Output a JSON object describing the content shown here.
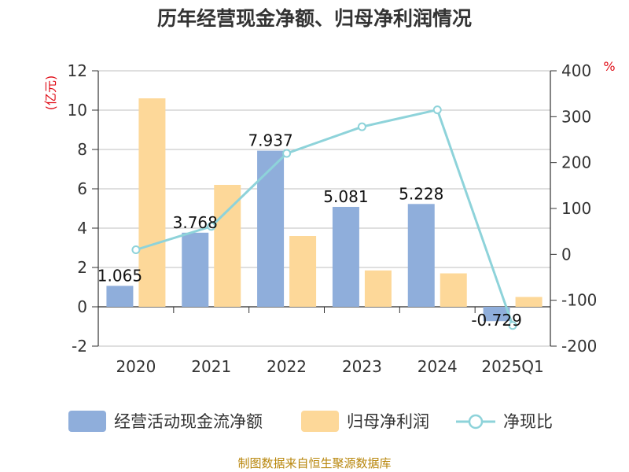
{
  "title": "历年经营现金净额、归母净利润情况",
  "source": "制图数据来自恒生聚源数据库",
  "left_axis_unit": "(亿元)",
  "right_axis_unit": "%",
  "legend": {
    "cash_flow": "经营活动现金流净额",
    "net_profit": "归母净利润",
    "ratio": "净现比"
  },
  "colors": {
    "cash_flow": "#8faedb",
    "net_profit": "#fdd899",
    "ratio": "#8ed3da",
    "grid": "#cccccc",
    "axis": "#333333"
  },
  "chart_data": {
    "type": "bar",
    "title": "历年经营现金净额、归母净利润情况",
    "categories": [
      "2020",
      "2021",
      "2022",
      "2023",
      "2024",
      "2025Q1"
    ],
    "series": [
      {
        "name": "经营活动现金流净额",
        "axis": "left",
        "values": [
          1.065,
          3.768,
          7.937,
          5.081,
          5.228,
          -0.729
        ],
        "labels": [
          "1.065",
          "3.768",
          "7.937",
          "5.081",
          "5.228",
          "-0.729"
        ]
      },
      {
        "name": "归母净利润",
        "axis": "left",
        "values": [
          10.6,
          6.2,
          3.6,
          1.85,
          1.7,
          0.5
        ]
      },
      {
        "name": "净现比",
        "type": "line",
        "axis": "right",
        "values": [
          10,
          61,
          220,
          278,
          315,
          -155
        ]
      }
    ],
    "y_left": {
      "min": -2,
      "max": 12,
      "ticks": [
        "-2",
        "0",
        "2",
        "4",
        "6",
        "8",
        "10",
        "12"
      ],
      "values": [
        -2,
        0,
        2,
        4,
        6,
        8,
        10,
        12
      ]
    },
    "y_right": {
      "min": -200,
      "max": 400,
      "ticks": [
        "-200",
        "-100",
        "0",
        "100",
        "200",
        "300",
        "400"
      ],
      "values": [
        -200,
        -100,
        0,
        100,
        200,
        300,
        400
      ]
    }
  }
}
